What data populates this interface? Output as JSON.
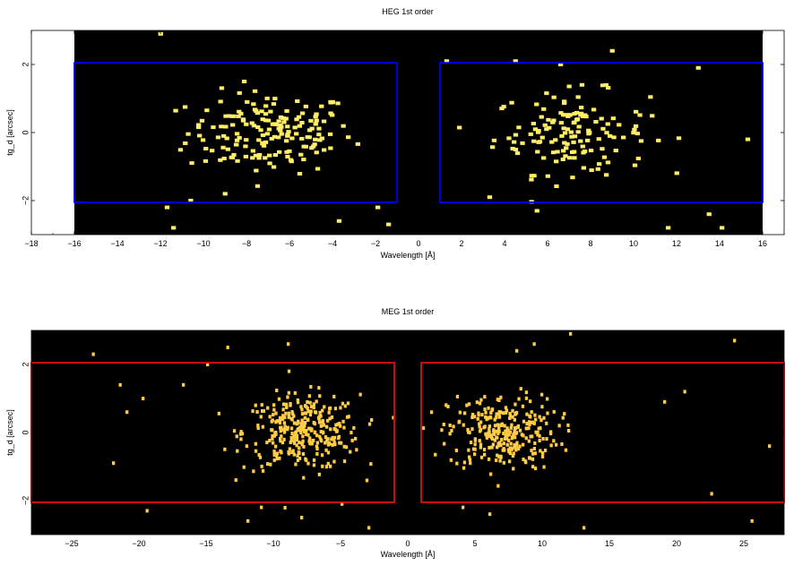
{
  "chart_data": [
    {
      "type": "heatmap",
      "title": "HEG 1st order",
      "xlabel": "Wavelength [Å]",
      "ylabel": "tg_d [arcsec]",
      "xlim": [
        -18,
        17
      ],
      "ylim": [
        -3,
        3
      ],
      "data_range": [
        -16,
        16
      ],
      "xticks": [
        -18,
        -16,
        -14,
        -12,
        -10,
        -8,
        -6,
        -4,
        -2,
        0,
        2,
        4,
        6,
        8,
        10,
        12,
        14,
        16
      ],
      "yticks": [
        2,
        0,
        -2
      ],
      "ytick_labels": [
        "2",
        "0",
        "−2"
      ],
      "extraction_regions": [
        {
          "x": [
            -16,
            -1
          ],
          "y": [
            -2.05,
            2.05
          ]
        },
        {
          "x": [
            1,
            16
          ],
          "y": [
            -2.05,
            2.05
          ]
        }
      ],
      "point_color": "#ffee66",
      "box_color": "#0000ee",
      "background_color": "#000000",
      "events": {
        "clusters": [
          {
            "center": [
              -7,
              0
            ],
            "spread": [
              3.2,
              0.6
            ],
            "count": 170
          },
          {
            "center": [
              7,
              0
            ],
            "spread": [
              3.0,
              0.6
            ],
            "count": 140
          }
        ],
        "scatter": [
          [
            -12.1,
            2.9
          ],
          [
            -11.8,
            -2.2
          ],
          [
            -11.5,
            -2.8
          ],
          [
            -10.7,
            -2.0
          ],
          [
            -9.1,
            -1.8
          ],
          [
            -3.8,
            -2.6
          ],
          [
            -2.0,
            -2.2
          ],
          [
            -1.5,
            -2.7
          ],
          [
            1.2,
            2.1
          ],
          [
            3.2,
            -1.9
          ],
          [
            4.4,
            2.1
          ],
          [
            6.5,
            2.0
          ],
          [
            8.9,
            2.4
          ],
          [
            12.9,
            1.9
          ],
          [
            14.0,
            -2.8
          ],
          [
            13.4,
            -2.4
          ],
          [
            15.2,
            -0.2
          ],
          [
            11.5,
            -2.8
          ],
          [
            5.4,
            -2.3
          ]
        ],
        "tick_count": 18
      }
    },
    {
      "type": "heatmap",
      "title": "MEG 1st order",
      "xlabel": "Wavelength [Å]",
      "ylabel": "tg_d [arcsec]",
      "xlim": [
        -28,
        28
      ],
      "ylim": [
        -3,
        3
      ],
      "xticks": [
        -25,
        -20,
        -15,
        -10,
        -5,
        0,
        5,
        10,
        15,
        20,
        25
      ],
      "xtick_labels": [
        "−25",
        "−20",
        "−15",
        "−10",
        "−5",
        "0",
        "5",
        "10",
        "15",
        "20",
        "25"
      ],
      "yticks": [
        2,
        0,
        -2
      ],
      "ytick_labels": [
        "2",
        "0",
        "−2"
      ],
      "extraction_regions": [
        {
          "x": [
            -28,
            -1
          ],
          "y": [
            -2.05,
            2.05
          ]
        },
        {
          "x": [
            1,
            28
          ],
          "y": [
            -2.05,
            2.05
          ]
        }
      ],
      "point_color": "#ffcc44",
      "box_color": "#dd1111",
      "background_color": "#000000",
      "events": {
        "clusters": [
          {
            "center": [
              -8,
              0
            ],
            "spread": [
              3.6,
              0.55
            ],
            "count": 320
          },
          {
            "center": [
              7,
              0
            ],
            "spread": [
              3.4,
              0.55
            ],
            "count": 280
          }
        ],
        "scatter": [
          [
            -23.5,
            2.3
          ],
          [
            -22,
            -0.9
          ],
          [
            -21.5,
            1.4
          ],
          [
            -21,
            0.6
          ],
          [
            -19.5,
            -2.3
          ],
          [
            -19.8,
            1.0
          ],
          [
            -16.8,
            1.4
          ],
          [
            -15,
            2.0
          ],
          [
            -13.5,
            2.5
          ],
          [
            -12,
            -2.6
          ],
          [
            -11,
            -2.2
          ],
          [
            -9,
            2.6
          ],
          [
            -8,
            -2.5
          ],
          [
            -5,
            -2.1
          ],
          [
            -3,
            -2.8
          ],
          [
            4,
            -2.2
          ],
          [
            6,
            -2.4
          ],
          [
            8,
            2.4
          ],
          [
            9.3,
            2.6
          ],
          [
            12,
            2.9
          ],
          [
            13,
            -2.8
          ],
          [
            19,
            0.9
          ],
          [
            20.5,
            1.2
          ],
          [
            22.5,
            -1.8
          ],
          [
            24.2,
            2.7
          ],
          [
            25.5,
            -2.6
          ],
          [
            26.8,
            -0.4
          ]
        ],
        "tick_count": 28
      }
    }
  ]
}
